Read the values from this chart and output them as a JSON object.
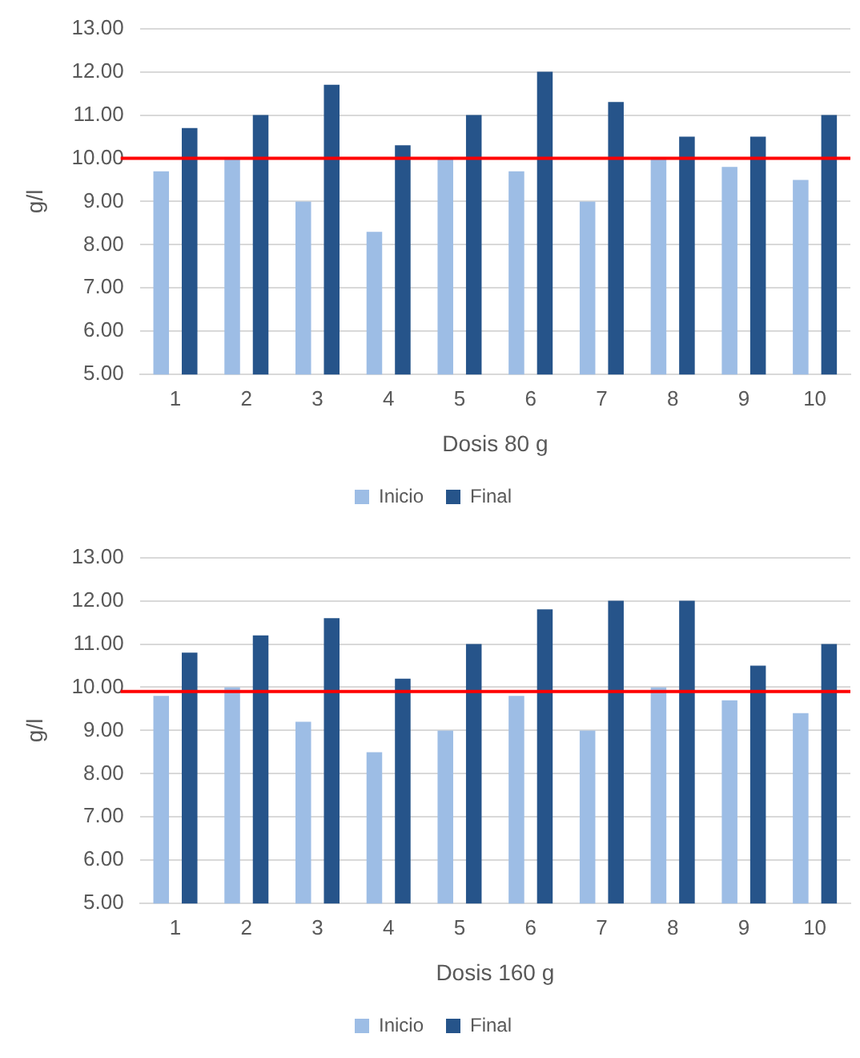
{
  "chart_data": [
    {
      "type": "bar",
      "xlabel": "Dosis 80 g",
      "ylabel": "g/l",
      "categories": [
        "1",
        "2",
        "3",
        "4",
        "5",
        "6",
        "7",
        "8",
        "9",
        "10"
      ],
      "series": [
        {
          "name": "Inicio",
          "color": "#9dbde5",
          "values": [
            9.7,
            10,
            9,
            8.3,
            10,
            9.7,
            9,
            10,
            9.8,
            9.5
          ]
        },
        {
          "name": "Final",
          "color": "#26548a",
          "values": [
            10.7,
            11,
            11.7,
            10.3,
            11,
            12,
            11.3,
            10.5,
            10.5,
            11
          ]
        }
      ],
      "ylim": [
        5,
        13
      ],
      "yticks": [
        {
          "value": 5,
          "label": "5.00"
        },
        {
          "value": 6,
          "label": "6.00"
        },
        {
          "value": 7,
          "label": "7.00"
        },
        {
          "value": 8,
          "label": "8.00"
        },
        {
          "value": 9,
          "label": "9.00"
        },
        {
          "value": 10,
          "label": "10.00"
        },
        {
          "value": 11,
          "label": "11.00"
        },
        {
          "value": 12,
          "label": "12.00"
        },
        {
          "value": 13,
          "label": "13.00"
        }
      ],
      "grid": "y",
      "legend": "bottom",
      "ref_lines": [
        {
          "axis": "y",
          "value": 10,
          "color": "#ff0000"
        }
      ]
    },
    {
      "type": "bar",
      "xlabel": "Dosis 160 g",
      "ylabel": "g/l",
      "categories": [
        "1",
        "2",
        "3",
        "4",
        "5",
        "6",
        "7",
        "8",
        "9",
        "10"
      ],
      "series": [
        {
          "name": "Inicio",
          "color": "#9dbde5",
          "values": [
            9.8,
            10,
            9.2,
            8.5,
            9,
            9.8,
            9,
            10,
            9.7,
            9.4
          ]
        },
        {
          "name": "Final",
          "color": "#26548a",
          "values": [
            10.8,
            11.2,
            11.6,
            10.2,
            11,
            11.8,
            12,
            12,
            10.5,
            11
          ]
        }
      ],
      "ylim": [
        5,
        13
      ],
      "yticks": [
        {
          "value": 5,
          "label": "5.00"
        },
        {
          "value": 6,
          "label": "6.00"
        },
        {
          "value": 7,
          "label": "7.00"
        },
        {
          "value": 8,
          "label": "8.00"
        },
        {
          "value": 9,
          "label": "9.00"
        },
        {
          "value": 10,
          "label": "10.00"
        },
        {
          "value": 11,
          "label": "11.00"
        },
        {
          "value": 12,
          "label": "12.00"
        },
        {
          "value": 13,
          "label": "13.00"
        }
      ],
      "grid": "y",
      "legend": "bottom",
      "ref_lines": [
        {
          "axis": "y",
          "value": 9.9,
          "color": "#ff0000"
        }
      ]
    }
  ]
}
